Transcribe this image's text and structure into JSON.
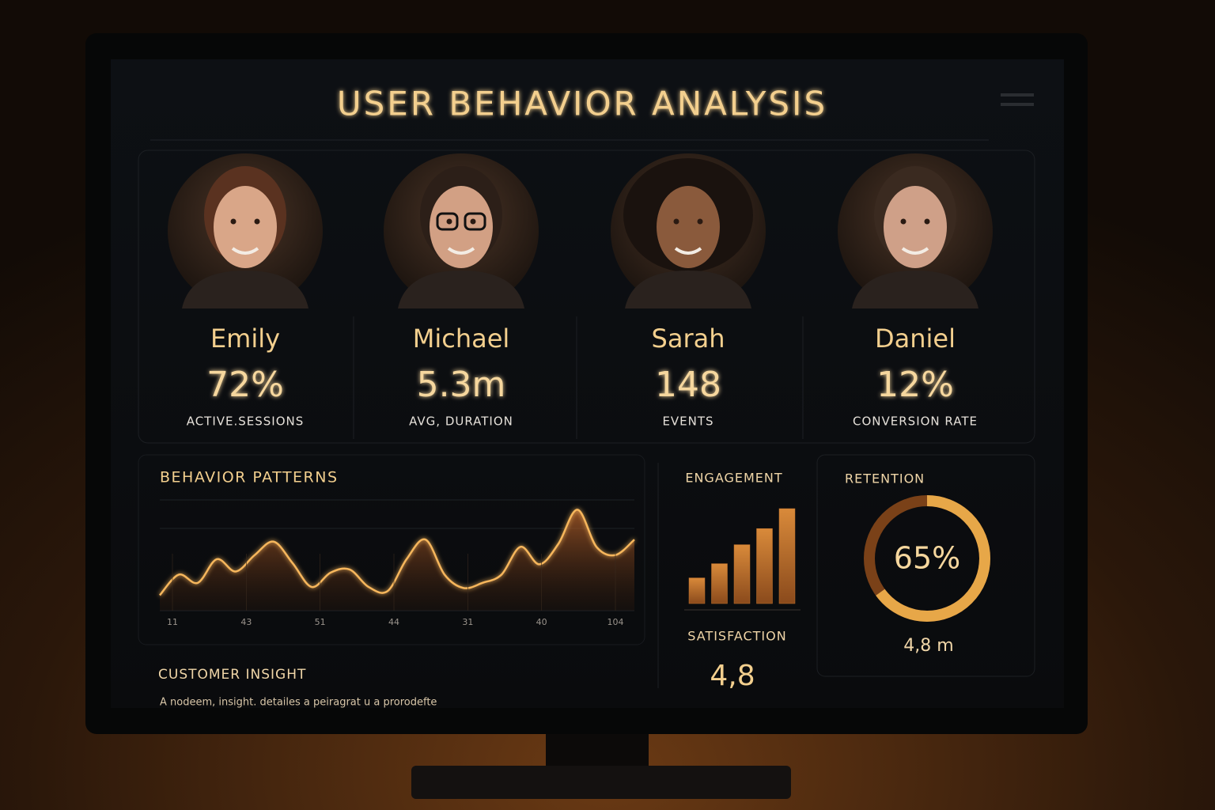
{
  "header": {
    "title": "USER BEHAVIOR ANALYSIS"
  },
  "users": [
    {
      "name": "Emily",
      "value": "72%",
      "metric": "ACTIVE.SESSIONS"
    },
    {
      "name": "Michael",
      "value": "5.3m",
      "metric": "AVG, DURATION"
    },
    {
      "name": "Sarah",
      "value": "148",
      "metric": "EVENTS"
    },
    {
      "name": "Daniel",
      "value": "12%",
      "metric": "CONVERSION RATE"
    }
  ],
  "chart_data": [
    {
      "type": "line",
      "title": "BEHAVIOR PATTERNS",
      "values": [
        15,
        35,
        27,
        50,
        38,
        54,
        67,
        46,
        23,
        37,
        40,
        23,
        19,
        50,
        69,
        35,
        22,
        27,
        35,
        62,
        45,
        65,
        98,
        62,
        54,
        69
      ],
      "xtick_labels": [
        "11",
        "43",
        "51",
        "44",
        "31",
        "40",
        "104"
      ],
      "ylim": [
        0,
        100
      ],
      "color": "#f6b65c"
    },
    {
      "type": "bar",
      "title": "ENGAGEMENT",
      "values": [
        27,
        42,
        62,
        79,
        100
      ],
      "ylim": [
        0,
        100
      ],
      "color": "#c4742c"
    },
    {
      "type": "donut",
      "title": "RETENTION",
      "values": [
        65
      ],
      "value_labels": [
        "65%"
      ],
      "subtitle": "4,8 m",
      "color": "#f3b24e"
    }
  ],
  "satisfaction": {
    "label": "SATISFACTION",
    "value": "4,8"
  },
  "insight": {
    "title": "CUSTOMER INSIGHT",
    "text": "A nodeem, insight. detailes a peiragrat u a prorodefte"
  }
}
